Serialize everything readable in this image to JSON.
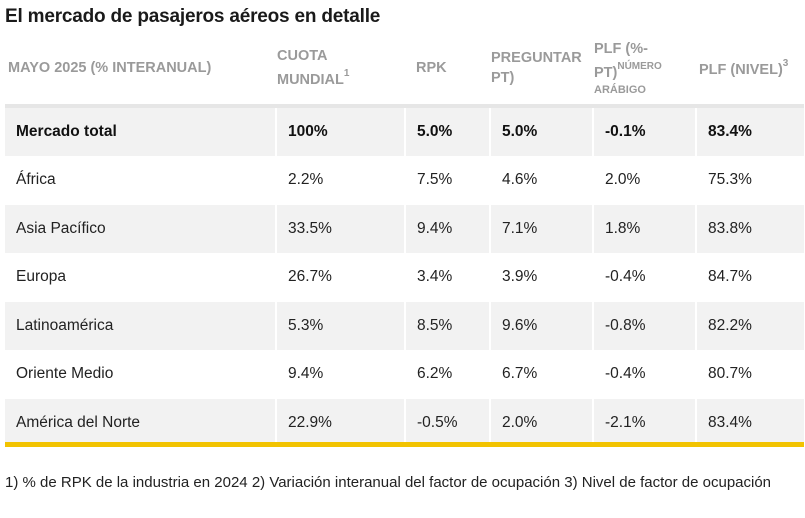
{
  "title": "El mercado de pasajeros aéreos en detalle",
  "table": {
    "headers": {
      "col0": "MAYO 2025 (% INTERANUAL)",
      "col1_line1": "CUOTA",
      "col1_line2": "MUNDIAL",
      "col1_sup": "1",
      "col2": "RPK",
      "col3": "PREGUNTAR PT)",
      "col4_line1": "PLF (%-",
      "col4_line2": "PT)",
      "col4_sup": "NÚMERO",
      "col4_sub": "ARÁBIGO",
      "col5": "PLF (NIVEL)",
      "col5_sup": "3"
    },
    "rows": [
      {
        "region": "Mercado total",
        "share": "100%",
        "rpk": "5.0%",
        "ask": "5.0%",
        "plf_pt": "-0.1%",
        "plf_level": "83.4%"
      },
      {
        "region": "África",
        "share": "2.2%",
        "rpk": "7.5%",
        "ask": "4.6%",
        "plf_pt": "2.0%",
        "plf_level": "75.3%"
      },
      {
        "region": "Asia Pacífico",
        "share": "33.5%",
        "rpk": "9.4%",
        "ask": "7.1%",
        "plf_pt": "1.8%",
        "plf_level": "83.8%"
      },
      {
        "region": "Europa",
        "share": "26.7%",
        "rpk": "3.4%",
        "ask": "3.9%",
        "plf_pt": "-0.4%",
        "plf_level": "84.7%"
      },
      {
        "region": "Latinoamérica",
        "share": "5.3%",
        "rpk": "8.5%",
        "ask": "9.6%",
        "plf_pt": "-0.8%",
        "plf_level": "82.2%"
      },
      {
        "region": "Oriente Medio",
        "share": "9.4%",
        "rpk": "6.2%",
        "ask": "6.7%",
        "plf_pt": "-0.4%",
        "plf_level": "80.7%"
      },
      {
        "region": "América del Norte",
        "share": "22.9%",
        "rpk": "-0.5%",
        "ask": "2.0%",
        "plf_pt": "-2.1%",
        "plf_level": "83.4%"
      }
    ]
  },
  "colors": {
    "accent_bar": "#f2c300",
    "header_text": "#9a9a9a",
    "row_stripe": "#f2f2f2"
  },
  "footnote": "1) % de RPK de la industria en 2024 2) Variación interanual del factor de ocupación 3) Nivel de factor de ocupación"
}
